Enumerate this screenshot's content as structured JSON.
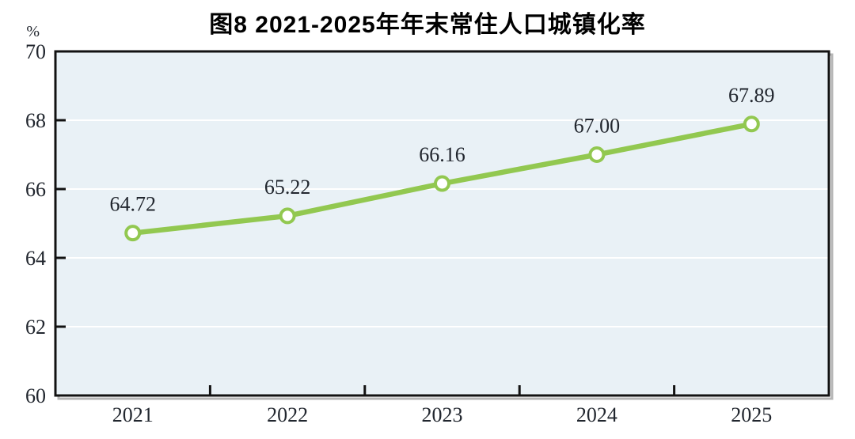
{
  "chart_data": {
    "type": "line",
    "title": "图8  2021-2025年年末常住人口城镇化率",
    "ylabel": "%",
    "categories": [
      "2021",
      "2022",
      "2023",
      "2024",
      "2025"
    ],
    "values": [
      64.72,
      65.22,
      66.16,
      67.0,
      67.89
    ],
    "value_labels": [
      "64.72",
      "65.22",
      "66.16",
      "67.00",
      "67.89"
    ],
    "ylim": [
      60,
      70
    ],
    "ytick_step": 2,
    "ytick_labels": [
      "70",
      "68",
      "66",
      "64",
      "62",
      "60"
    ],
    "grid": "horizontal-gridlines-on",
    "legend": "none",
    "colors": {
      "line": "#92c850",
      "marker_fill": "#ffffff",
      "plot_bg": "#e9f1f6",
      "gridline": "#ffffff",
      "axis": "#121212",
      "shadow": "#b5b5b5",
      "text": "#21262e",
      "title_text": "#000000"
    }
  }
}
